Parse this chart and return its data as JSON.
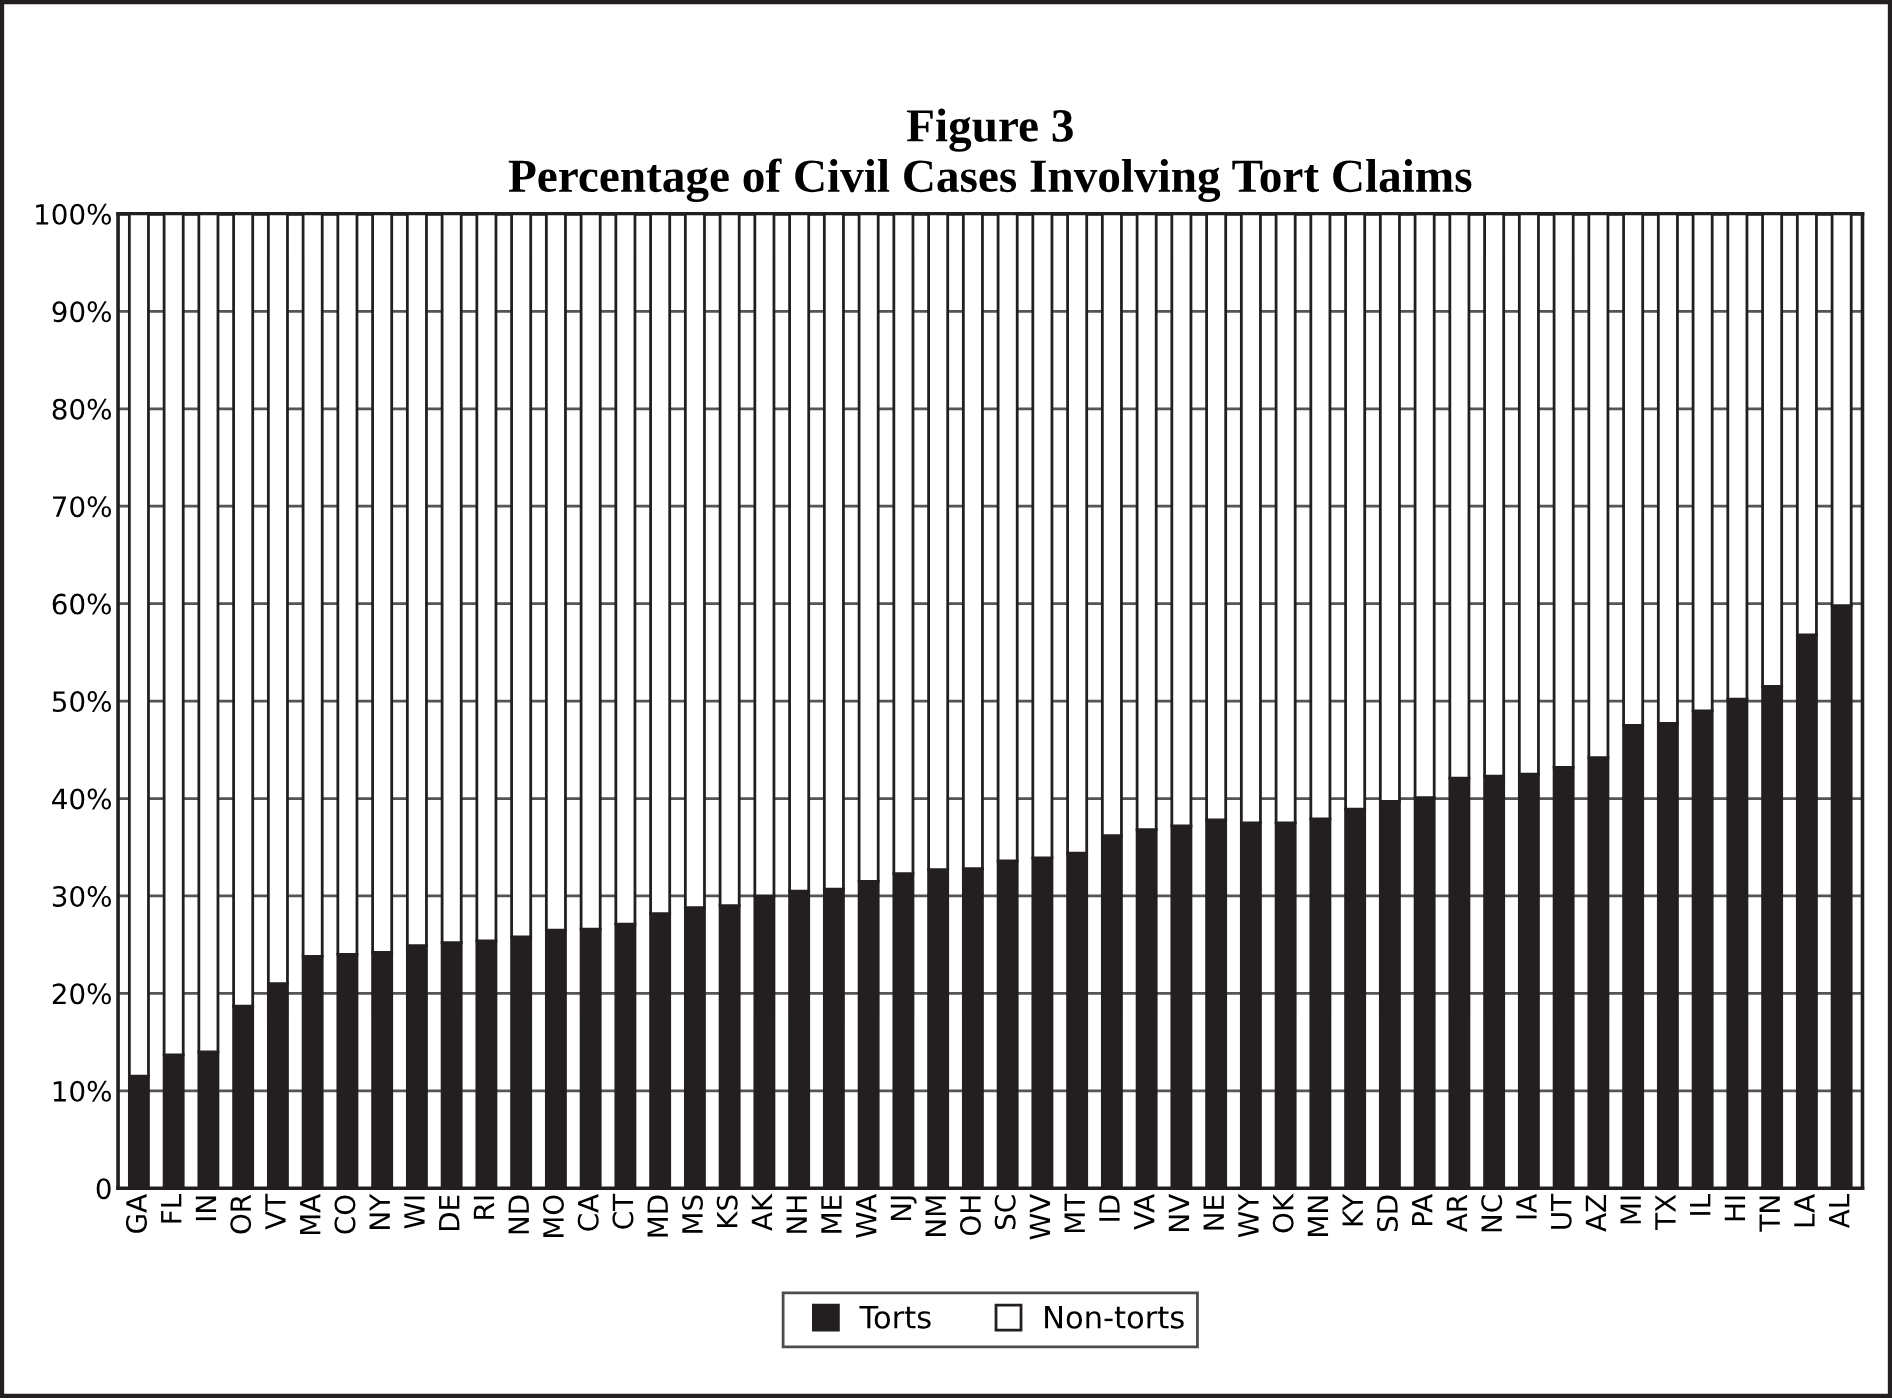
{
  "chart_data": {
    "type": "bar",
    "stacked": true,
    "title": "Figure 3\nPercentage of Civil Cases Involving Tort Claims",
    "categories": [
      "GA",
      "FL",
      "IN",
      "OR",
      "VT",
      "MA",
      "CO",
      "NY",
      "WI",
      "DE",
      "RI",
      "ND",
      "MO",
      "CA",
      "CT",
      "MD",
      "MS",
      "KS",
      "AK",
      "NH",
      "ME",
      "WA",
      "NJ",
      "NM",
      "OH",
      "SC",
      "WV",
      "MT",
      "ID",
      "VA",
      "NV",
      "NE",
      "WY",
      "OK",
      "MN",
      "KY",
      "SD",
      "PA",
      "AR",
      "NC",
      "IA",
      "UT",
      "AZ",
      "MI",
      "TX",
      "IL",
      "HI",
      "TN",
      "LA",
      "AL"
    ],
    "series": [
      {
        "name": "Torts",
        "color": "#231f20",
        "values": [
          11.5,
          13.7,
          14.0,
          18.7,
          21.0,
          23.8,
          24.0,
          24.2,
          24.9,
          25.2,
          25.4,
          25.8,
          26.5,
          26.6,
          27.1,
          28.2,
          28.8,
          29.0,
          30.0,
          30.5,
          30.7,
          31.5,
          32.3,
          32.7,
          32.8,
          33.6,
          33.9,
          34.4,
          36.2,
          36.8,
          37.2,
          37.8,
          37.5,
          37.5,
          37.9,
          38.9,
          39.7,
          40.1,
          42.1,
          42.3,
          42.5,
          43.2,
          44.2,
          47.5,
          47.7,
          49.0,
          50.2,
          51.5,
          56.8,
          59.8
        ]
      },
      {
        "name": "Non-torts",
        "color": "#ffffff",
        "values": [
          88.5,
          86.3,
          86.0,
          81.3,
          79.0,
          76.2,
          76.0,
          75.8,
          75.1,
          74.8,
          74.6,
          74.2,
          73.5,
          73.4,
          72.9,
          71.8,
          71.2,
          71.0,
          70.0,
          69.5,
          69.3,
          68.5,
          67.7,
          67.3,
          67.2,
          66.4,
          66.1,
          65.6,
          63.8,
          63.2,
          62.8,
          62.2,
          62.5,
          62.5,
          62.1,
          61.1,
          60.3,
          59.9,
          57.9,
          57.7,
          57.5,
          56.8,
          55.8,
          52.5,
          52.3,
          51.0,
          49.8,
          48.5,
          43.2,
          40.2
        ]
      }
    ],
    "ylim": [
      0,
      100
    ],
    "yticks": [
      {
        "value": 0,
        "label": "0"
      },
      {
        "value": 10,
        "label": "10%"
      },
      {
        "value": 20,
        "label": "20%"
      },
      {
        "value": 30,
        "label": "30%"
      },
      {
        "value": 40,
        "label": "40%"
      },
      {
        "value": 50,
        "label": "50%"
      },
      {
        "value": 60,
        "label": "60%"
      },
      {
        "value": 70,
        "label": "70%"
      },
      {
        "value": 80,
        "label": "80%"
      },
      {
        "value": 90,
        "label": "90%"
      },
      {
        "value": 100,
        "label": "100%"
      }
    ],
    "grid": "y",
    "legend": "bottom"
  }
}
